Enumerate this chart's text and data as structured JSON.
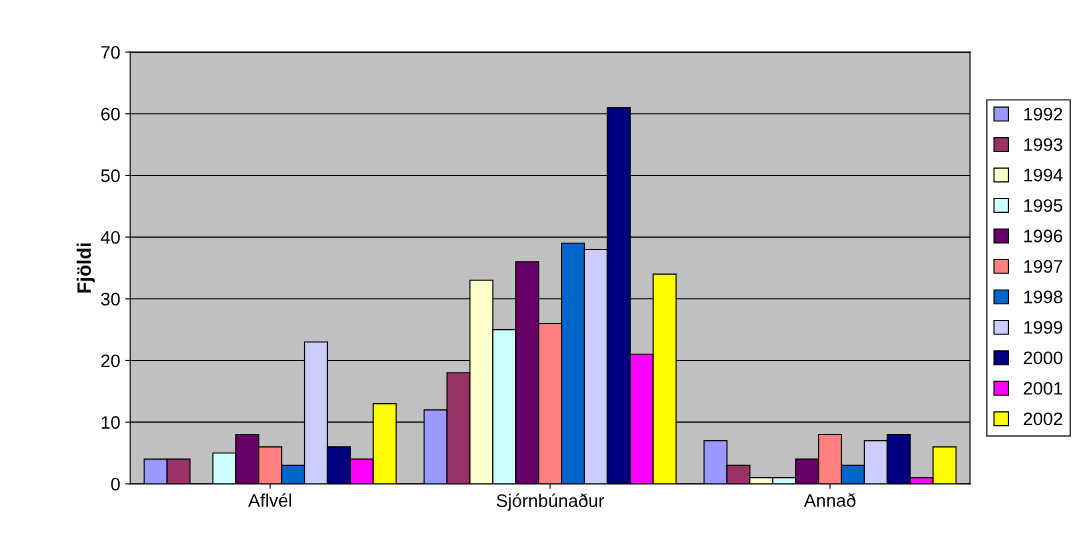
{
  "chart_data": {
    "type": "bar",
    "ylabel": "Fjöldi",
    "categories": [
      "Aflvél",
      "Sjórnbúnaður",
      "Annað"
    ],
    "series": [
      {
        "name": "1992",
        "color": "#9999ff",
        "values": [
          4,
          12,
          7
        ]
      },
      {
        "name": "1993",
        "color": "#993366",
        "values": [
          4,
          18,
          3
        ]
      },
      {
        "name": "1994",
        "color": "#ffffcc",
        "values": [
          null,
          33,
          1
        ]
      },
      {
        "name": "1995",
        "color": "#ccffff",
        "values": [
          5,
          25,
          1
        ]
      },
      {
        "name": "1996",
        "color": "#660066",
        "values": [
          8,
          36,
          4
        ]
      },
      {
        "name": "1997",
        "color": "#ff8080",
        "values": [
          6,
          26,
          8
        ]
      },
      {
        "name": "1998",
        "color": "#0066cc",
        "values": [
          3,
          39,
          3
        ]
      },
      {
        "name": "1999",
        "color": "#ccccff",
        "values": [
          23,
          38,
          7
        ]
      },
      {
        "name": "2000",
        "color": "#000080",
        "values": [
          6,
          61,
          8
        ]
      },
      {
        "name": "2001",
        "color": "#ff00ff",
        "values": [
          4,
          21,
          1
        ]
      },
      {
        "name": "2002",
        "color": "#ffff00",
        "values": [
          13,
          34,
          6
        ]
      }
    ],
    "ylim": [
      0,
      70
    ],
    "yticks": [
      0,
      10,
      20,
      30,
      40,
      50,
      60,
      70
    ],
    "grid": "y",
    "legend": "right"
  }
}
